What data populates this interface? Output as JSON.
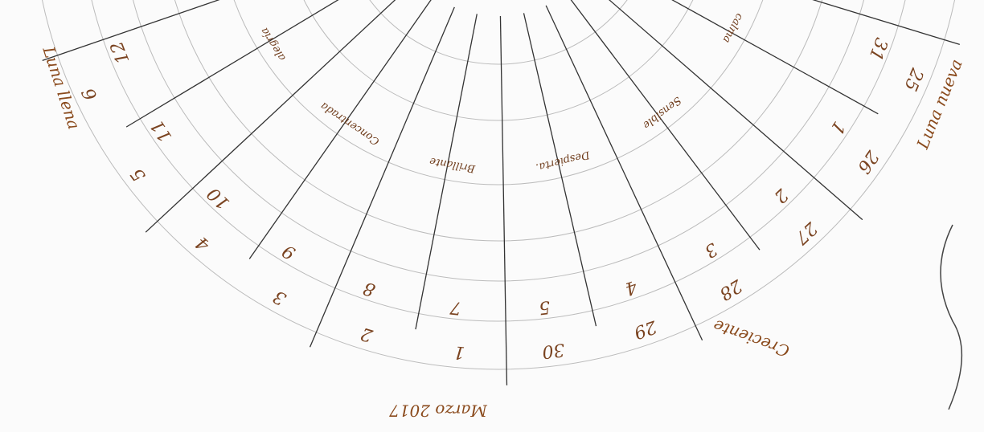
{
  "title": "Marzo 2017",
  "phases": {
    "full": "Luna llena",
    "new": "Luna nueva",
    "waxing": "Creciente"
  },
  "outer_days": [
    25,
    26,
    27,
    28,
    29,
    30,
    1,
    2,
    3,
    4,
    5,
    6
  ],
  "inner_days": [
    31,
    1,
    2,
    3,
    4,
    5,
    7,
    8,
    9,
    10,
    11,
    12
  ],
  "notes": [
    "calma",
    "Sensible",
    "Despierta.",
    "Brillante",
    "Concentrada",
    "alegría"
  ]
}
